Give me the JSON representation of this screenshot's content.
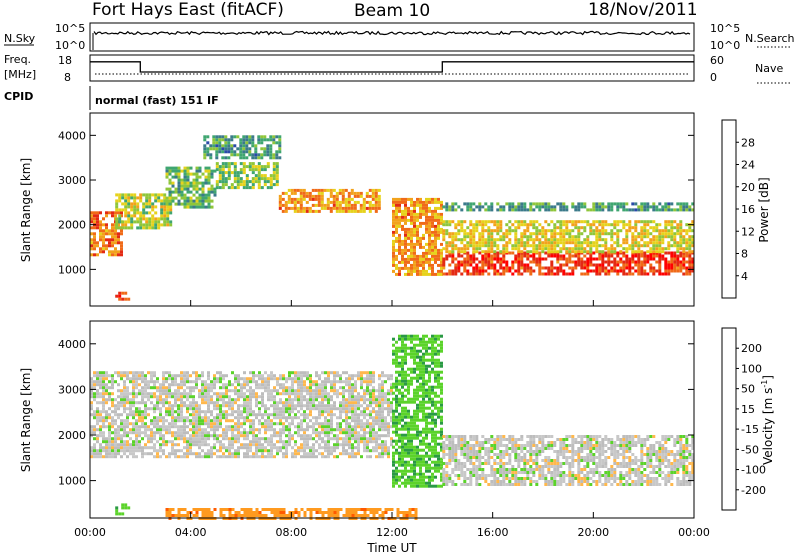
{
  "header": {
    "radar": "Fort Hays East (fitACF)",
    "beam": "Beam 10",
    "date": "18/Nov/2011"
  },
  "noise_panel": {
    "left_label": "N.Sky",
    "right_label": "N.Search",
    "left_ticks": [
      "10^5",
      "10^0"
    ],
    "right_ticks": [
      "10^5",
      "10^0"
    ]
  },
  "freq_panel": {
    "left_label": "Freq.",
    "left_unit": "[MHz]",
    "left_ticks": [
      "18",
      "8"
    ],
    "right_label": "Nave",
    "right_ticks": [
      "60",
      "0"
    ],
    "series": [
      {
        "t": [
          0,
          2.0
        ],
        "freq": 15.8
      },
      {
        "t": [
          2.0,
          14.0
        ],
        "freq": 11.2
      },
      {
        "t": [
          14.0,
          24.0
        ],
        "freq": 15.8
      }
    ]
  },
  "cpid_panel": {
    "label": "CPID",
    "mode": "normal (fast) 151 IF"
  },
  "colors": {
    "power": [
      "#1f1fd6",
      "#2a4aa8",
      "#3b7a8a",
      "#3fa670",
      "#8fc63a",
      "#e6d21c",
      "#f2a21c",
      "#f06a18",
      "#e32a14",
      "#ff0000"
    ],
    "velocity": [
      "#ff0000",
      "#ff5a00",
      "#ff9a1f",
      "#ffb84d",
      "#bdbdbd",
      "#c8c8c8",
      "#5bd32a",
      "#2a9a44",
      "#1a3aa0",
      "#2020c8"
    ]
  },
  "chart_data": [
    {
      "type": "heatmap",
      "name": "power",
      "ylabel": "Slant Range [km]",
      "xlabel": "",
      "ylim": [
        180,
        4500
      ],
      "yticks": [
        1000,
        2000,
        3000,
        4000
      ],
      "xlim": [
        0,
        24
      ],
      "colorbar": {
        "label": "Power [dB]",
        "ticks": [
          "4",
          "8",
          "12",
          "16",
          "20",
          "24",
          "28"
        ],
        "range": [
          0,
          32
        ]
      },
      "features": [
        {
          "kind": "band",
          "t": [
            0.0,
            1.2
          ],
          "r": [
            1300,
            2300
          ],
          "level": 24
        },
        {
          "kind": "band",
          "t": [
            1.0,
            3.2
          ],
          "r": [
            1900,
            2700
          ],
          "level": 16
        },
        {
          "kind": "band",
          "t": [
            3.0,
            5.0
          ],
          "r": [
            2400,
            3300
          ],
          "level": 12
        },
        {
          "kind": "band",
          "t": [
            5.0,
            7.5
          ],
          "r": [
            2800,
            3400
          ],
          "level": 14
        },
        {
          "kind": "band",
          "t": [
            7.5,
            11.5
          ],
          "r": [
            2300,
            2800
          ],
          "level": 22
        },
        {
          "kind": "band",
          "t": [
            12.0,
            14.0
          ],
          "r": [
            900,
            2600
          ],
          "level": 22
        },
        {
          "kind": "band",
          "t": [
            14.0,
            24.0
          ],
          "r": [
            900,
            1400
          ],
          "level": 28
        },
        {
          "kind": "band",
          "t": [
            14.0,
            24.0
          ],
          "r": [
            1400,
            2100
          ],
          "level": 18
        },
        {
          "kind": "band",
          "t": [
            14.0,
            24.0
          ],
          "r": [
            2300,
            2500
          ],
          "level": 10
        },
        {
          "kind": "band",
          "t": [
            4.5,
            7.5
          ],
          "r": [
            3500,
            4000
          ],
          "level": 10
        },
        {
          "kind": "band",
          "t": [
            1.0,
            1.5
          ],
          "r": [
            300,
            500
          ],
          "level": 26
        }
      ]
    },
    {
      "type": "heatmap",
      "name": "velocity",
      "ylabel": "Slant Range [km]",
      "xlabel": "Time UT",
      "ylim": [
        180,
        4500
      ],
      "yticks": [
        1000,
        2000,
        3000,
        4000
      ],
      "xlim": [
        0,
        24
      ],
      "xticks": [
        "00:00",
        "04:00",
        "08:00",
        "12:00",
        "16:00",
        "20:00",
        "00:00"
      ],
      "xtick_hours": [
        0,
        4,
        8,
        12,
        16,
        20,
        24
      ],
      "colorbar": {
        "label": "Velocity [m s",
        "label_sup": "-1",
        "label_end": "]",
        "ticks": [
          "-200",
          "-100",
          "-50",
          "-15",
          "15",
          "50",
          "100",
          "200"
        ]
      },
      "features": [
        {
          "kind": "band",
          "t": [
            0.0,
            12.0
          ],
          "r": [
            1500,
            3400
          ],
          "velocity": 0
        },
        {
          "kind": "band",
          "t": [
            12.0,
            14.0
          ],
          "r": [
            900,
            4200
          ],
          "velocity": 40
        },
        {
          "kind": "band",
          "t": [
            14.0,
            24.0
          ],
          "r": [
            900,
            2000
          ],
          "velocity": 0
        },
        {
          "kind": "band",
          "t": [
            3.0,
            13.0
          ],
          "r": [
            180,
            400
          ],
          "velocity": -60
        },
        {
          "kind": "band",
          "t": [
            1.0,
            1.5
          ],
          "r": [
            300,
            500
          ],
          "velocity": 40
        }
      ]
    }
  ]
}
